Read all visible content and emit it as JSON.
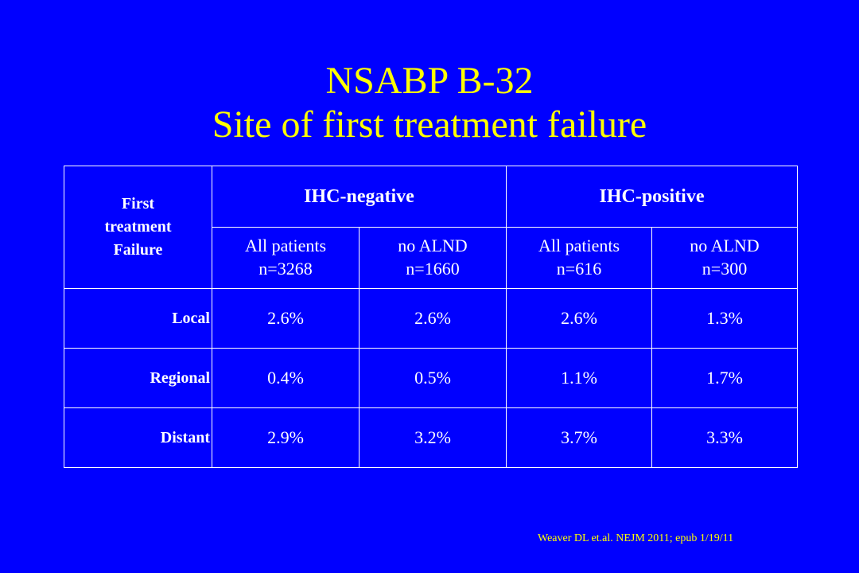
{
  "slide": {
    "title_line1": "NSABP B-32",
    "title_line2": "Site of first treatment failure",
    "citation": "Weaver DL et.al. NEJM 2011; epub 1/19/11"
  },
  "table": {
    "corner_header": [
      "First",
      "treatment",
      "Failure"
    ],
    "groups": [
      "IHC-negative",
      "IHC-positive"
    ],
    "subheaders": [
      {
        "line1": "All patients",
        "line2": "n=3268"
      },
      {
        "line1": "no ALND",
        "line2": "n=1660"
      },
      {
        "line1": "All patients",
        "line2": "n=616"
      },
      {
        "line1": "no ALND",
        "line2": "n=300"
      }
    ],
    "rows": [
      {
        "label": "Local",
        "values": [
          "2.6%",
          "2.6%",
          "2.6%",
          "1.3%"
        ]
      },
      {
        "label": "Regional",
        "values": [
          "0.4%",
          "0.5%",
          "1.1%",
          "1.7%"
        ]
      },
      {
        "label": "Distant",
        "values": [
          "2.9%",
          "3.2%",
          "3.7%",
          "3.3%"
        ]
      }
    ]
  },
  "colors": {
    "background": "#0000ff",
    "title": "#ffff00",
    "table_text": "#ffffff",
    "citation": "#ffff00"
  }
}
